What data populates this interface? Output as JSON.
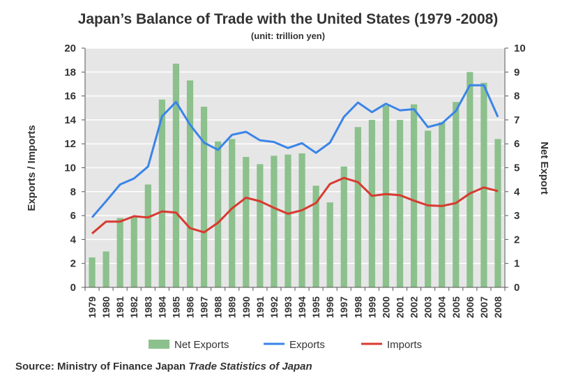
{
  "chart_data": {
    "type": "bar+line",
    "title": "Japan’s Balance of Trade with the United States (1979 -2008)",
    "subtitle": "(unit: trillion yen)",
    "ylabel_left": "Exports / Imports",
    "ylabel_right": "Net Export",
    "ylim_left": [
      0,
      20
    ],
    "ylim_right": [
      0,
      10
    ],
    "yticks_left": [
      "0",
      "2",
      "4",
      "6",
      "8",
      "10",
      "12",
      "14",
      "16",
      "18",
      "20"
    ],
    "yticks_right": [
      "0",
      "1",
      "2",
      "3",
      "4",
      "5",
      "6",
      "7",
      "8",
      "9",
      "10"
    ],
    "grid": true,
    "categories": [
      "1979",
      "1980",
      "1981",
      "1982",
      "1983",
      "1984",
      "1985",
      "1986",
      "1987",
      "1988",
      "1989",
      "1990",
      "1991",
      "1992",
      "1993",
      "1994",
      "1995",
      "1996",
      "1997",
      "1998",
      "1999",
      "2000",
      "2001",
      "2002",
      "2003",
      "2004",
      "2005",
      "2006",
      "2007",
      "2008"
    ],
    "series": [
      {
        "name": "Net Exports",
        "type": "bar",
        "axis": "right",
        "color": "#8cc08c",
        "values": [
          1.25,
          1.5,
          2.9,
          2.95,
          4.3,
          7.85,
          9.35,
          8.65,
          7.55,
          6.1,
          6.2,
          5.45,
          5.15,
          5.5,
          5.55,
          5.6,
          4.25,
          3.55,
          5.05,
          6.7,
          7.0,
          7.6,
          7.0,
          7.65,
          6.55,
          6.9,
          7.75,
          9.0,
          8.55,
          6.2
        ]
      },
      {
        "name": "Exports",
        "type": "line",
        "axis": "left",
        "color": "#3a84e8",
        "values": [
          5.85,
          7.2,
          8.6,
          9.1,
          10.1,
          14.3,
          15.5,
          13.6,
          12.1,
          11.5,
          12.75,
          13.0,
          12.3,
          12.15,
          11.65,
          12.05,
          11.25,
          12.1,
          14.25,
          15.45,
          14.65,
          15.35,
          14.8,
          14.9,
          13.4,
          13.7,
          14.75,
          16.9,
          16.9,
          14.25
        ]
      },
      {
        "name": "Imports",
        "type": "line",
        "axis": "left",
        "color": "#d83a30",
        "values": [
          4.5,
          5.5,
          5.5,
          5.95,
          5.85,
          6.35,
          6.25,
          4.95,
          4.6,
          5.4,
          6.6,
          7.5,
          7.2,
          6.65,
          6.15,
          6.45,
          7.05,
          8.65,
          9.15,
          8.8,
          7.65,
          7.8,
          7.7,
          7.25,
          6.85,
          6.8,
          7.05,
          7.85,
          8.35,
          8.05
        ]
      }
    ],
    "legend_position": "bottom"
  },
  "source": {
    "prefix": "Source: Ministry of Finance Japan ",
    "publication": "Trade Statistics of Japan"
  },
  "colors": {
    "plot_bg": "#e6e6e6",
    "grid": "#ffffff",
    "axis": "#555555"
  }
}
